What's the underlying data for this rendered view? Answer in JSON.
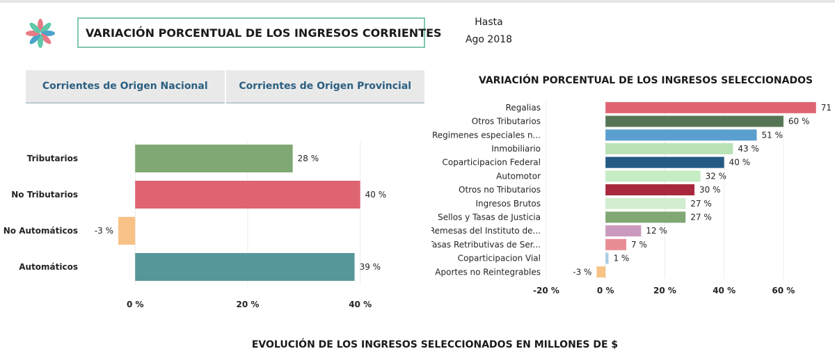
{
  "header": {
    "title": "VARIACIÓN PORCENTUAL DE LOS INGRESOS CORRIENTES",
    "hasta_label": "Hasta",
    "hasta_value": "Ago 2018"
  },
  "tabs": [
    {
      "label": "Corrientes de Origen Nacional"
    },
    {
      "label": "Corrientes de Origen Provincial"
    }
  ],
  "colors": {
    "green": "#7fa874",
    "red": "#de6471",
    "orange": "#f8c287",
    "teal": "#56979b"
  },
  "chart_data": [
    {
      "type": "bar",
      "orientation": "horizontal",
      "title": "",
      "categories": [
        "Tributarios",
        "No Tributarios",
        "No Automáticos",
        "Automáticos"
      ],
      "values": [
        28,
        40,
        -3,
        39
      ],
      "value_labels": [
        "28 %",
        "40 %",
        "-3 %",
        "39 %"
      ],
      "colors": [
        "#7fa874",
        "#de6471",
        "#f8c287",
        "#56979b"
      ],
      "xlim": [
        -3,
        44
      ],
      "xticks": [
        0,
        20,
        40
      ],
      "xtick_labels": [
        "0 %",
        "20 %",
        "40 %"
      ],
      "grid": true
    },
    {
      "type": "bar",
      "orientation": "horizontal",
      "title": "VARIACIÓN PORCENTUAL DE LOS INGRESOS SELECCIONADOS",
      "categories": [
        "Regalias",
        "Otros Tributarios",
        "Regimenes especiales n...",
        "Inmobiliario",
        "Coparticipacion Federal",
        "Automotor",
        "Otros no Tributarios",
        "Ingresos Brutos",
        "Sellos y Tasas de Justicia",
        "Remesas del Instituto de...",
        "Tasas Retributivas de Ser...",
        "Coparticipacion Vial",
        "Aportes no Reintegrables"
      ],
      "values": [
        71,
        60,
        51,
        43,
        40,
        32,
        30,
        27,
        27,
        12,
        7,
        1,
        -3
      ],
      "value_labels": [
        "71",
        "60 %",
        "51 %",
        "43 %",
        "40 %",
        "32 %",
        "30 %",
        "27 %",
        "27 %",
        "12 %",
        "7 %",
        "1 %",
        "-3 %"
      ],
      "colors": [
        "#de6471",
        "#567554",
        "#5b9fcf",
        "#b9e3b6",
        "#245b85",
        "#c6ecc4",
        "#a8283d",
        "#d2edd0",
        "#7fa874",
        "#c99abd",
        "#e88c94",
        "#aacde6",
        "#f8c287"
      ],
      "xlim": [
        -20,
        72
      ],
      "xticks": [
        -20,
        0,
        20,
        40,
        60
      ],
      "xtick_labels": [
        "-20 %",
        "0 %",
        "20 %",
        "40 %",
        "60 %"
      ],
      "grid": true
    }
  ],
  "bottom": {
    "title": "EVOLUCIÓN DE LOS INGRESOS SELECCIONADOS EN MILLONES DE $"
  }
}
